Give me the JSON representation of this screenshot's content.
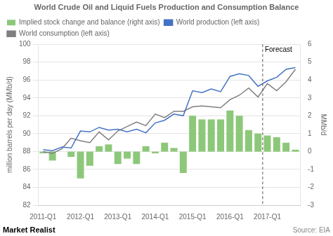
{
  "chart_data": {
    "type": "bar",
    "title": "World Crude Oil and Liquid Fuels Production and Consumption Balance",
    "ylabel": "million barrels per day (MMb/d)",
    "y2label": "MMb/d",
    "categories": [
      "2011-Q1",
      null,
      null,
      null,
      "2012-Q1",
      null,
      null,
      null,
      "2013-Q1",
      null,
      null,
      null,
      "2014-Q1",
      null,
      null,
      null,
      "2015-Q1",
      null,
      null,
      null,
      "2016-Q1",
      null,
      null,
      null,
      "2017-Q1",
      null,
      null,
      null
    ],
    "series": [
      {
        "name": "Implied stock change and balance (right axis)",
        "type": "bar",
        "axis": "y2",
        "color": "#8dc87a",
        "values": [
          -0.1,
          -0.5,
          0.0,
          -0.3,
          -1.5,
          -0.8,
          0.3,
          0.4,
          -0.7,
          -0.4,
          -0.7,
          0.3,
          -0.1,
          0.5,
          0.2,
          -1.2,
          2.0,
          1.8,
          1.8,
          1.8,
          2.3,
          2.0,
          1.2,
          1.0,
          0.9,
          0.8,
          0.5,
          0.1
        ]
      },
      {
        "name": "World production (left axis)",
        "type": "line",
        "color": "#4472c4",
        "values": [
          88.2,
          88.1,
          88.5,
          88.4,
          90.3,
          90.2,
          90.7,
          90.4,
          90.5,
          90.2,
          90.5,
          90.1,
          91.2,
          91.5,
          92.2,
          92.0,
          94.8,
          94.6,
          95.0,
          94.7,
          96.4,
          96.7,
          96.5,
          95.3,
          95.9,
          96.3,
          97.2,
          97.4
        ]
      },
      {
        "name": "World consumption (left axis)",
        "type": "line",
        "color": "#7f7f7f",
        "values": [
          88.0,
          87.8,
          88.3,
          89.5,
          89.2,
          89.0,
          90.2,
          89.3,
          90.3,
          90.8,
          91.3,
          90.9,
          92.2,
          91.8,
          92.5,
          92.5,
          93.0,
          93.1,
          93.0,
          92.9,
          93.8,
          94.3,
          95.1,
          94.1,
          95.6,
          94.8,
          95.8,
          97.2
        ]
      }
    ],
    "ylim": [
      82,
      100
    ],
    "yticks": [
      82,
      84,
      86,
      88,
      90,
      92,
      94,
      96,
      98,
      100
    ],
    "y2lim": [
      -3,
      6
    ],
    "y2ticks": [
      -3,
      -2,
      -1,
      0,
      1,
      2,
      3,
      4,
      5,
      6
    ],
    "grid": true,
    "legend": "upper left",
    "annotations": [
      {
        "text": "Forecast",
        "x": "2017-Q1",
        "line_style": "dashed"
      }
    ],
    "watermark": "Market Realist",
    "source": "Source: EIA"
  }
}
